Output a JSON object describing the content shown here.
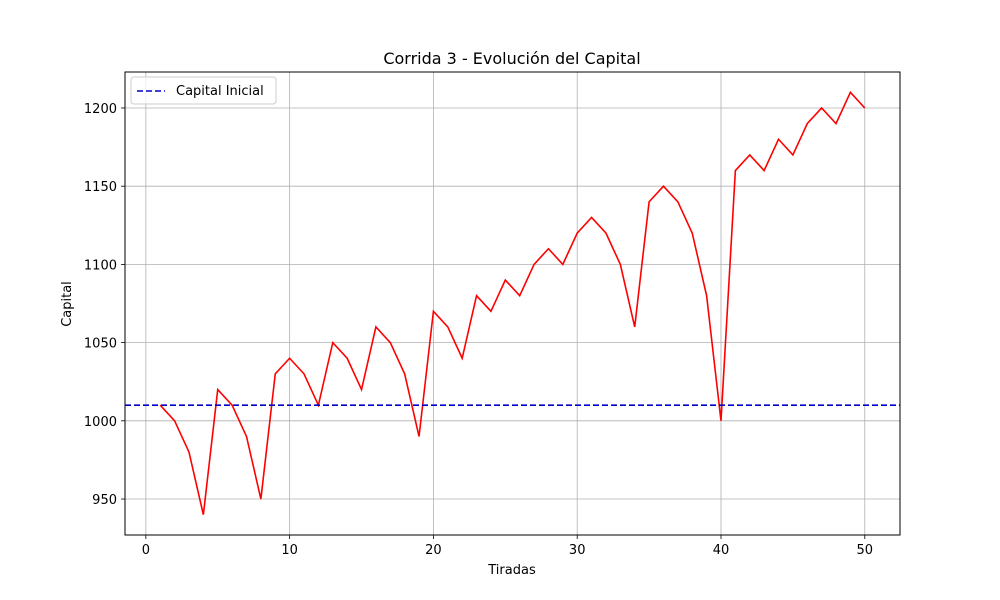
{
  "chart_data": {
    "type": "line",
    "title": "Corrida 3 - Evolución del Capital",
    "xlabel": "Tiradas",
    "ylabel": "Capital",
    "xlim": [
      -1.45,
      52.45
    ],
    "ylim": [
      927,
      1223
    ],
    "xticks": [
      0,
      10,
      20,
      30,
      40,
      50
    ],
    "yticks": [
      950,
      1000,
      1050,
      1100,
      1150,
      1200
    ],
    "grid": true,
    "legend_position": "upper-left",
    "series": [
      {
        "name": "",
        "color": "#ff0000",
        "style": "solid",
        "x": [
          1,
          2,
          3,
          4,
          5,
          6,
          7,
          8,
          9,
          10,
          11,
          12,
          13,
          14,
          15,
          16,
          17,
          18,
          19,
          20,
          21,
          22,
          23,
          24,
          25,
          26,
          27,
          28,
          29,
          30,
          31,
          32,
          33,
          34,
          35,
          36,
          37,
          38,
          39,
          40,
          41,
          42,
          43,
          44,
          45,
          46,
          47,
          48,
          49,
          50
        ],
        "y": [
          1010,
          1000,
          980,
          940,
          1020,
          1010,
          990,
          950,
          1030,
          1040,
          1030,
          1010,
          1050,
          1040,
          1020,
          1060,
          1050,
          1030,
          990,
          1070,
          1060,
          1040,
          1080,
          1070,
          1090,
          1080,
          1100,
          1110,
          1100,
          1120,
          1130,
          1120,
          1100,
          1060,
          1140,
          1150,
          1140,
          1120,
          1080,
          1000,
          1160,
          1170,
          1160,
          1180,
          1170,
          1190,
          1200,
          1190,
          1210,
          1200
        ]
      }
    ],
    "hlines": [
      {
        "name": "Capital Inicial",
        "y": 1010,
        "color": "#0000cc",
        "style": "dashed"
      }
    ]
  }
}
